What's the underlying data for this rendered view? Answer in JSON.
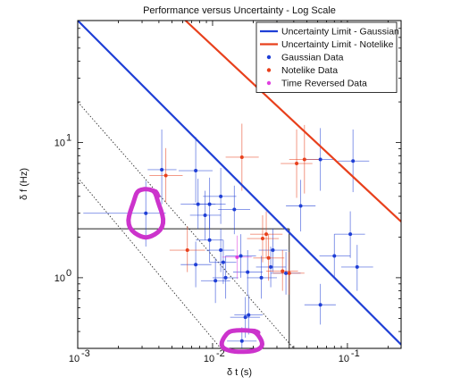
{
  "chart_data": {
    "type": "scatter",
    "title": "Performance versus Uncertainty - Log Scale",
    "xlabel": "δ t (s)",
    "ylabel": "δ f (Hz)",
    "xscale": "log",
    "yscale": "log",
    "xlim": [
      0.001,
      0.25
    ],
    "ylim": [
      0.3,
      80
    ],
    "x_ticks": [
      {
        "value": 0.001,
        "base": "10",
        "exp": "-3"
      },
      {
        "value": 0.01,
        "base": "10",
        "exp": "-2"
      },
      {
        "value": 0.1,
        "base": "10",
        "exp": "-1"
      }
    ],
    "y_ticks": [
      {
        "value": 1,
        "base": "10",
        "exp": "0"
      },
      {
        "value": 10,
        "base": "10",
        "exp": "1"
      }
    ],
    "grid": false,
    "legend_position": "top-right",
    "legend": [
      {
        "label": "Uncertainty Limit - Gaussian",
        "kind": "line",
        "color": "#1f3fd6"
      },
      {
        "label": "Uncertainty Limit - Notelike",
        "kind": "line",
        "color": "#e8401c"
      },
      {
        "label": "Gaussian Data",
        "kind": "dot",
        "color": "#1f3fd6"
      },
      {
        "label": "Notelike Data",
        "kind": "dot",
        "color": "#e8401c"
      },
      {
        "label": "Time Reversed Data",
        "kind": "dot",
        "color": "#e040e0"
      }
    ],
    "limit_lines": [
      {
        "name": "Uncertainty Limit - Gaussian",
        "color": "#1f3fd6",
        "points": [
          [
            0.001,
            80
          ],
          [
            0.25,
            0.32
          ]
        ]
      },
      {
        "name": "Uncertainty Limit - Notelike",
        "color": "#e8401c",
        "points": [
          [
            0.0063,
            80
          ],
          [
            0.25,
            2.6
          ]
        ]
      }
    ],
    "dotted_lines": [
      {
        "color": "#333333",
        "points": [
          [
            0.001,
            20
          ],
          [
            0.04,
            0.3
          ]
        ]
      },
      {
        "color": "#333333",
        "points": [
          [
            0.001,
            5.5
          ],
          [
            0.0115,
            0.3
          ]
        ]
      }
    ],
    "reference_box": {
      "x": [
        0.001,
        0.037
      ],
      "y": [
        0.3,
        2.3
      ],
      "color": "#222222"
    },
    "highlight_circles": [
      {
        "color": "#cc33cc",
        "x": 0.0032,
        "y": 3.0
      },
      {
        "color": "#cc33cc",
        "x": 0.0165,
        "y": 0.34
      }
    ],
    "series": [
      {
        "name": "Gaussian Data",
        "color": "#1f3fd6",
        "points": [
          {
            "x": 0.0032,
            "y": 3.0,
            "xerr": [
              0.0011,
              0.0045
            ],
            "yerr": [
              1.7,
              5.2
            ]
          },
          {
            "x": 0.0042,
            "y": 6.3,
            "xerr": [
              0.0033,
              0.0054
            ],
            "yerr": [
              3.5,
              12.5
            ]
          },
          {
            "x": 0.0075,
            "y": 6.2,
            "xerr": [
              0.0056,
              0.01
            ],
            "yerr": [
              3.6,
              11
            ]
          },
          {
            "x": 0.0078,
            "y": 3.5,
            "xerr": [
              0.0058,
              0.0105
            ],
            "yerr": [
              2.3,
              5.4
            ]
          },
          {
            "x": 0.0088,
            "y": 2.9,
            "xerr": [
              0.0068,
              0.0115
            ],
            "yerr": [
              1.9,
              4.4
            ]
          },
          {
            "x": 0.0095,
            "y": 3.5,
            "xerr": [
              0.0072,
              0.0125
            ],
            "yerr": [
              2.3,
              5.5
            ]
          },
          {
            "x": 0.0115,
            "y": 4.0,
            "xerr": [
              0.0085,
              0.015
            ],
            "yerr": [
              2.5,
              6.5
            ]
          },
          {
            "x": 0.0095,
            "y": 1.9,
            "xerr": [
              0.0075,
              0.012
            ],
            "yerr": [
              1.3,
              2.9
            ]
          },
          {
            "x": 0.012,
            "y": 1.3,
            "xerr": [
              0.0095,
              0.015
            ],
            "yerr": [
              0.9,
              1.9
            ]
          },
          {
            "x": 0.0075,
            "y": 1.25,
            "xerr": [
              0.0058,
              0.0098
            ],
            "yerr": [
              0.85,
              1.85
            ]
          },
          {
            "x": 0.0115,
            "y": 1.6,
            "xerr": [
              0.009,
              0.0145
            ],
            "yerr": [
              1.1,
              2.3
            ]
          },
          {
            "x": 0.0105,
            "y": 0.95,
            "xerr": [
              0.0082,
              0.0135
            ],
            "yerr": [
              0.65,
              1.4
            ]
          },
          {
            "x": 0.0125,
            "y": 1.0,
            "xerr": [
              0.01,
              0.0155
            ],
            "yerr": [
              0.7,
              1.45
            ]
          },
          {
            "x": 0.0145,
            "y": 3.2,
            "xerr": [
              0.011,
              0.019
            ],
            "yerr": [
              2.1,
              4.8
            ]
          },
          {
            "x": 0.0162,
            "y": 1.45,
            "xerr": [
              0.0125,
              0.021
            ],
            "yerr": [
              1.0,
              2.1
            ]
          },
          {
            "x": 0.0182,
            "y": 1.1,
            "xerr": [
              0.0142,
              0.0235
            ],
            "yerr": [
              0.75,
              1.6
            ]
          },
          {
            "x": 0.0185,
            "y": 0.53,
            "xerr": [
              0.0145,
              0.0235
            ],
            "yerr": [
              0.38,
              0.75
            ]
          },
          {
            "x": 0.0175,
            "y": 0.51,
            "xerr": [
              0.0135,
              0.0225
            ],
            "yerr": [
              0.36,
              0.72
            ]
          },
          {
            "x": 0.0165,
            "y": 0.34,
            "xerr": [
              0.0128,
              0.0212
            ],
            "yerr": [
              0.3,
              0.43
            ]
          },
          {
            "x": 0.023,
            "y": 1.0,
            "xerr": [
              0.018,
              0.03
            ],
            "yerr": [
              0.7,
              1.45
            ]
          },
          {
            "x": 0.027,
            "y": 1.2,
            "xerr": [
              0.021,
              0.035
            ],
            "yerr": [
              0.85,
              1.7
            ]
          },
          {
            "x": 0.028,
            "y": 1.6,
            "xerr": [
              0.022,
              0.036
            ],
            "yerr": [
              1.1,
              2.3
            ]
          },
          {
            "x": 0.035,
            "y": 1.08,
            "xerr": [
              0.027,
              0.045
            ],
            "yerr": [
              0.75,
              1.55
            ]
          },
          {
            "x": 0.045,
            "y": 3.4,
            "xerr": [
              0.035,
              0.058
            ],
            "yerr": [
              2.2,
              5.3
            ]
          },
          {
            "x": 0.063,
            "y": 7.5,
            "xerr": [
              0.048,
              0.082
            ],
            "yerr": [
              4.4,
              12.8
            ]
          },
          {
            "x": 0.063,
            "y": 0.63,
            "xerr": [
              0.048,
              0.082
            ],
            "yerr": [
              0.45,
              0.9
            ]
          },
          {
            "x": 0.08,
            "y": 1.45,
            "xerr": [
              0.062,
              0.105
            ],
            "yerr": [
              1.0,
              2.1
            ]
          },
          {
            "x": 0.105,
            "y": 2.1,
            "xerr": [
              0.08,
              0.135
            ],
            "yerr": [
              1.4,
              3.1
            ]
          },
          {
            "x": 0.118,
            "y": 1.2,
            "xerr": [
              0.09,
              0.155
            ],
            "yerr": [
              0.8,
              1.75
            ]
          },
          {
            "x": 0.11,
            "y": 7.3,
            "xerr": [
              0.085,
              0.145
            ],
            "yerr": [
              4.3,
              12.5
            ]
          }
        ]
      },
      {
        "name": "Notelike Data",
        "color": "#e8401c",
        "points": [
          {
            "x": 0.0045,
            "y": 5.7,
            "xerr": [
              0.0034,
              0.006
            ],
            "yerr": [
              3.6,
              9.1
            ]
          },
          {
            "x": 0.0065,
            "y": 1.6,
            "xerr": [
              0.0048,
              0.0088
            ],
            "yerr": [
              1.1,
              2.4
            ]
          },
          {
            "x": 0.0165,
            "y": 7.8,
            "xerr": [
              0.0125,
              0.022
            ],
            "yerr": [
              4.4,
              13.8
            ]
          },
          {
            "x": 0.0235,
            "y": 1.95,
            "xerr": [
              0.018,
              0.031
            ],
            "yerr": [
              1.3,
              2.9
            ]
          },
          {
            "x": 0.025,
            "y": 2.1,
            "xerr": [
              0.019,
              0.033
            ],
            "yerr": [
              1.4,
              3.1
            ]
          },
          {
            "x": 0.026,
            "y": 1.4,
            "xerr": [
              0.02,
              0.034
            ],
            "yerr": [
              0.95,
              2.1
            ]
          },
          {
            "x": 0.033,
            "y": 1.12,
            "xerr": [
              0.025,
              0.043
            ],
            "yerr": [
              0.8,
              1.6
            ]
          },
          {
            "x": 0.037,
            "y": 1.08,
            "xerr": [
              0.028,
              0.048
            ],
            "yerr": [
              0.75,
              1.55
            ]
          },
          {
            "x": 0.042,
            "y": 7.0,
            "xerr": [
              0.032,
              0.055
            ],
            "yerr": [
              3.9,
              12.5
            ]
          },
          {
            "x": 0.048,
            "y": 7.5,
            "xerr": [
              0.037,
              0.062
            ],
            "yerr": [
              4.2,
              13.5
            ]
          }
        ]
      },
      {
        "name": "Time Reversed Data",
        "color": "#e040e0",
        "points": [
          {
            "x": 0.0152,
            "y": 1.42,
            "xerr": [
              0.0118,
              0.0195
            ],
            "yerr": [
              0.98,
              2.05
            ]
          }
        ]
      }
    ]
  }
}
